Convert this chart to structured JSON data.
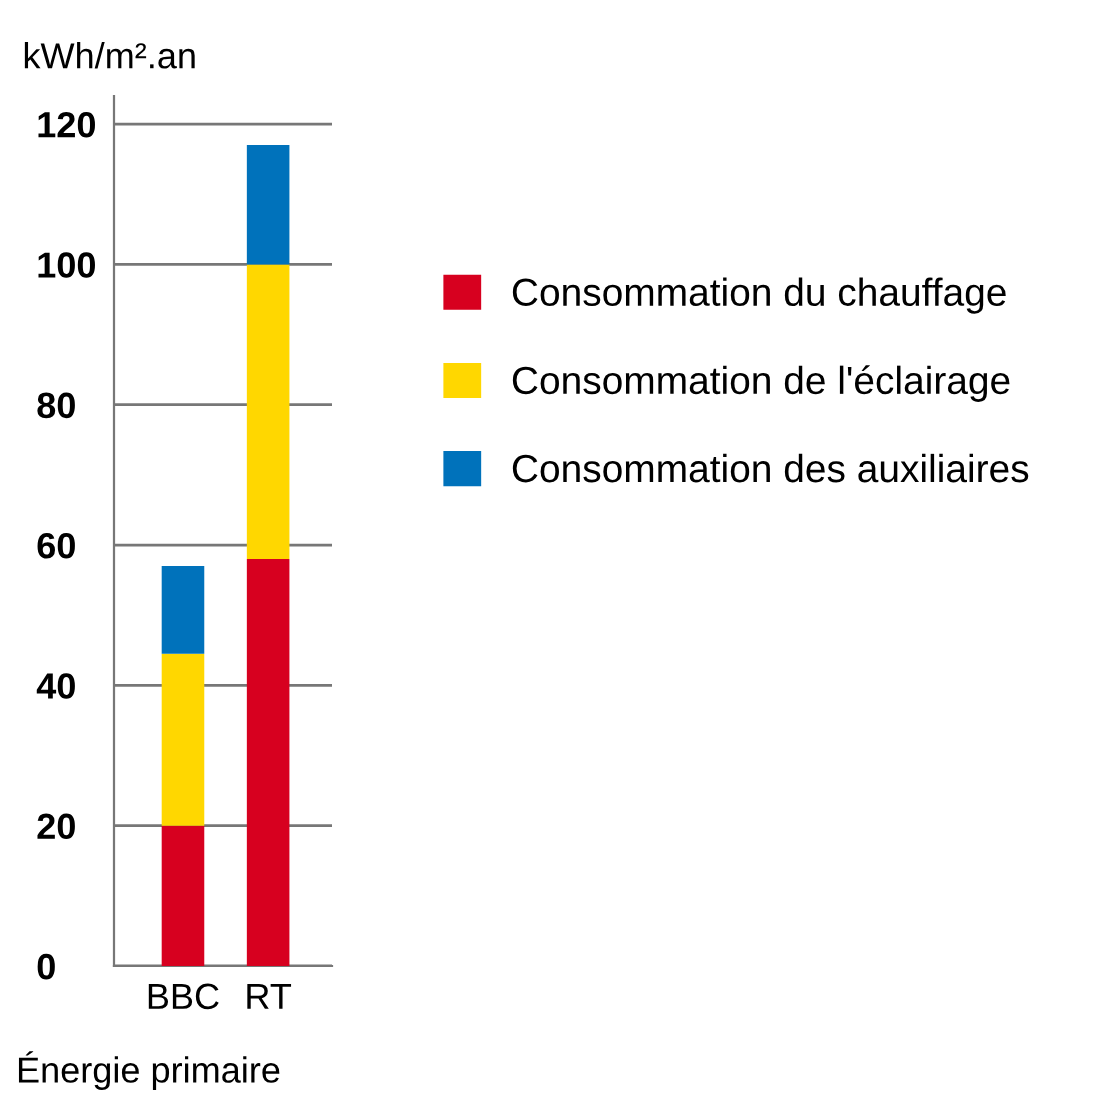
{
  "chart_data": {
    "type": "bar",
    "stacked": true,
    "ylabel": "kWh/m².an",
    "xlabel": "Énergie primaire",
    "categories": [
      "BBC",
      "RT"
    ],
    "series": [
      {
        "name": "Consommation du chauffage",
        "color": "#d7001f",
        "values": [
          20,
          58
        ]
      },
      {
        "name": "Consommation de l'éclairage",
        "color": "#ffd700",
        "values": [
          24.5,
          42
        ]
      },
      {
        "name": "Consommation des auxiliaires",
        "color": "#0072bb",
        "values": [
          12.5,
          17
        ]
      }
    ],
    "ylim": [
      0,
      124
    ],
    "yticks": [
      0,
      20,
      40,
      60,
      80,
      100,
      120
    ],
    "grid": "y",
    "legend": "right"
  }
}
